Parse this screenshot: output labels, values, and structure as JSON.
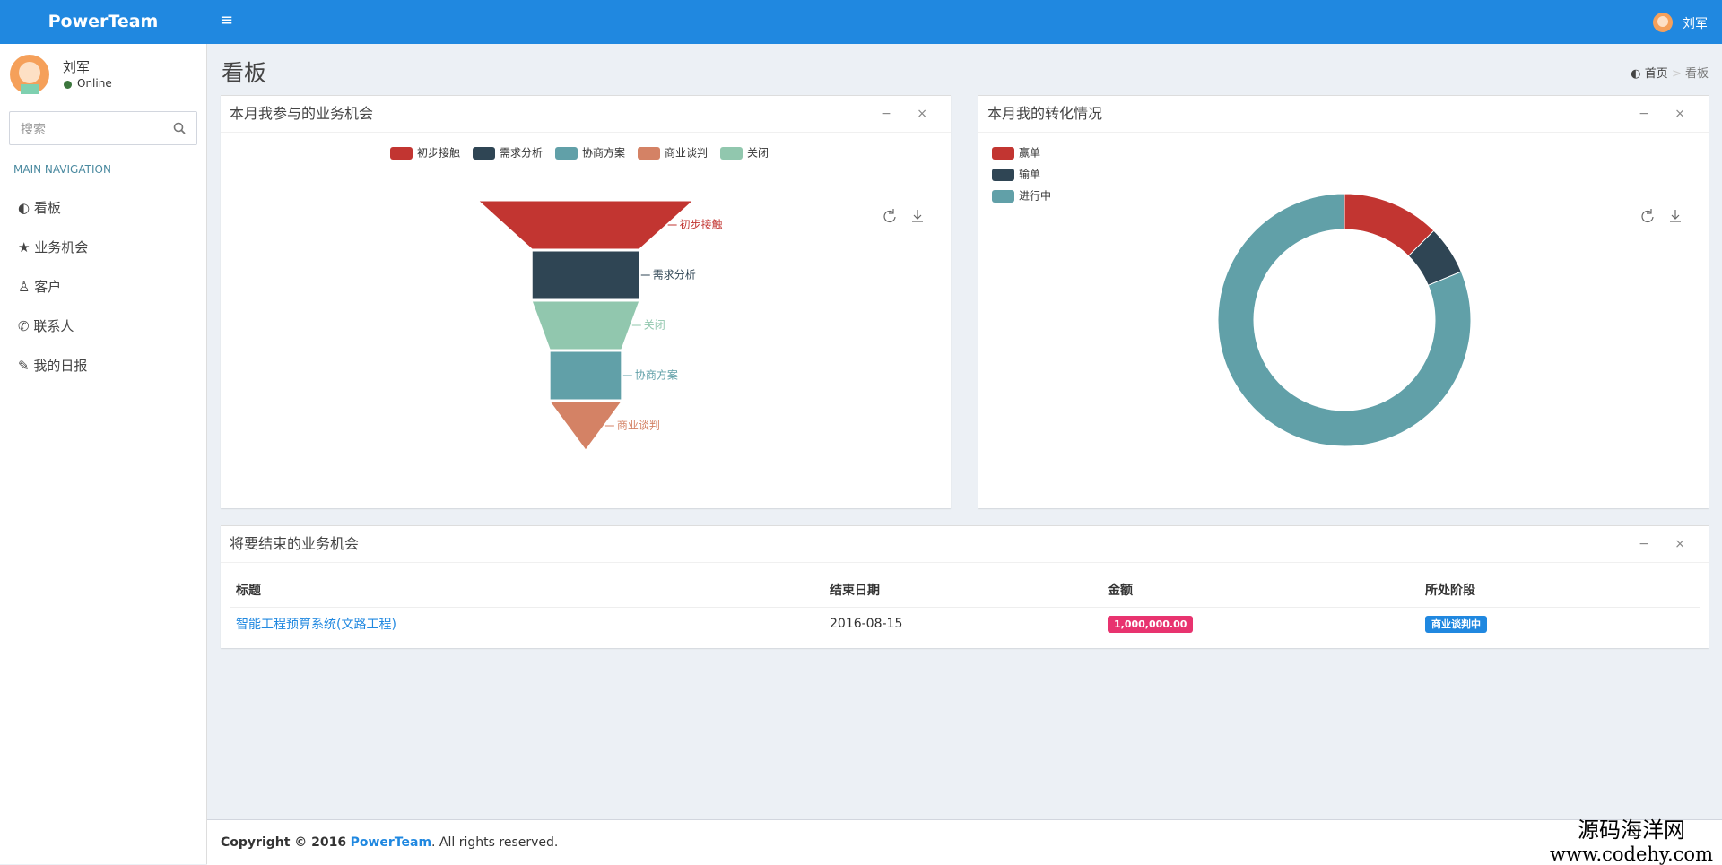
{
  "header": {
    "brand": "PowerTeam",
    "user": "刘军"
  },
  "sidebar": {
    "user": "刘军",
    "status": "Online",
    "search_placeholder": "搜索",
    "nav_header": "MAIN NAVIGATION",
    "menu": [
      "看板",
      "业务机会",
      "客户",
      "联系人",
      "我的日报"
    ]
  },
  "page": {
    "title": "看板",
    "breadcrumb": [
      "首页",
      "看板"
    ]
  },
  "chart_data": [
    {
      "type": "funnel",
      "title": "本月我参与的业务机会",
      "categories": [
        "初步接触",
        "需求分析",
        "协商方案",
        "商业谈判",
        "关闭"
      ],
      "values": [
        6,
        3,
        2,
        2,
        3
      ],
      "colors": [
        "#c23531",
        "#2f4554",
        "#61a0a8",
        "#d48265",
        "#91c7ae"
      ],
      "legend": "top"
    },
    {
      "type": "pie",
      "title": "本月我的转化情况",
      "categories": [
        "赢单",
        "输单",
        "进行中"
      ],
      "values": [
        2,
        1,
        13
      ],
      "colors": [
        "#c23531",
        "#2f4554",
        "#61a0a8"
      ],
      "legend": "top-left"
    }
  ],
  "table": {
    "title": "将要结束的业务机会",
    "columns": [
      "标题",
      "结束日期",
      "金额",
      "所处阶段"
    ],
    "rows": [
      [
        "智能工程预算系统(文路工程)",
        "2016-08-15",
        "1,000,000.00",
        "商业谈判中"
      ]
    ]
  },
  "footer": {
    "copyright": "Copyright © 2016",
    "brand": "PowerTeam",
    "rights": ". All rights reserved."
  },
  "watermark": [
    "源码海洋网",
    "www.codehy.com"
  ]
}
